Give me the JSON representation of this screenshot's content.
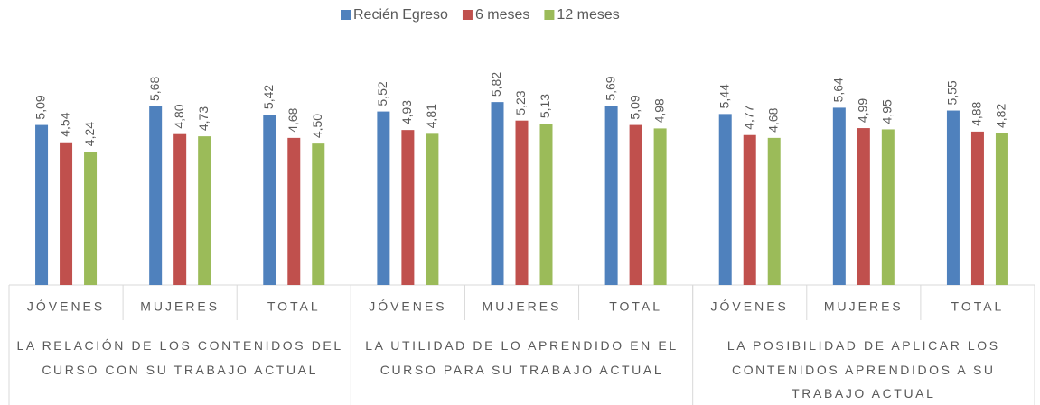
{
  "chart_data": {
    "type": "bar",
    "categories": [
      "JÓVENES",
      "MUJERES",
      "TOTAL",
      "JÓVENES",
      "MUJERES",
      "TOTAL",
      "JÓVENES",
      "MUJERES",
      "TOTAL"
    ],
    "groups": [
      {
        "label": "LA RELACIÓN DE LOS CONTENIDOS DEL CURSO CON SU TRABAJO ACTUAL",
        "size": 3
      },
      {
        "label": "LA UTILIDAD DE LO APRENDIDO EN EL CURSO PARA SU TRABAJO ACTUAL",
        "size": 3
      },
      {
        "label": "LA POSIBILIDAD DE APLICAR LOS CONTENIDOS APRENDIDOS A SU TRABAJO ACTUAL",
        "size": 3
      }
    ],
    "series": [
      {
        "name": "Recién Egreso",
        "color": "#4f81bd",
        "values": [
          5.09,
          5.68,
          5.42,
          5.52,
          5.82,
          5.69,
          5.44,
          5.64,
          5.55
        ],
        "value_labels": [
          "5,09",
          "5,68",
          "5,42",
          "5,52",
          "5,82",
          "5,69",
          "5,44",
          "5,64",
          "5,55"
        ]
      },
      {
        "name": "6 meses",
        "color": "#c0504d",
        "values": [
          4.54,
          4.8,
          4.68,
          4.93,
          5.23,
          5.09,
          4.77,
          4.99,
          4.88
        ],
        "value_labels": [
          "4,54",
          "4,80",
          "4,68",
          "4,93",
          "5,23",
          "5,09",
          "4,77",
          "4,99",
          "4,88"
        ]
      },
      {
        "name": "12 meses",
        "color": "#9bbb59",
        "values": [
          4.24,
          4.73,
          4.5,
          4.81,
          5.13,
          4.98,
          4.68,
          4.95,
          4.82
        ],
        "value_labels": [
          "4,24",
          "4,73",
          "4,50",
          "4,81",
          "5,13",
          "4,98",
          "4,68",
          "4,95",
          "4,82"
        ]
      }
    ],
    "ylim": [
      0,
      7
    ],
    "legend": "top"
  }
}
